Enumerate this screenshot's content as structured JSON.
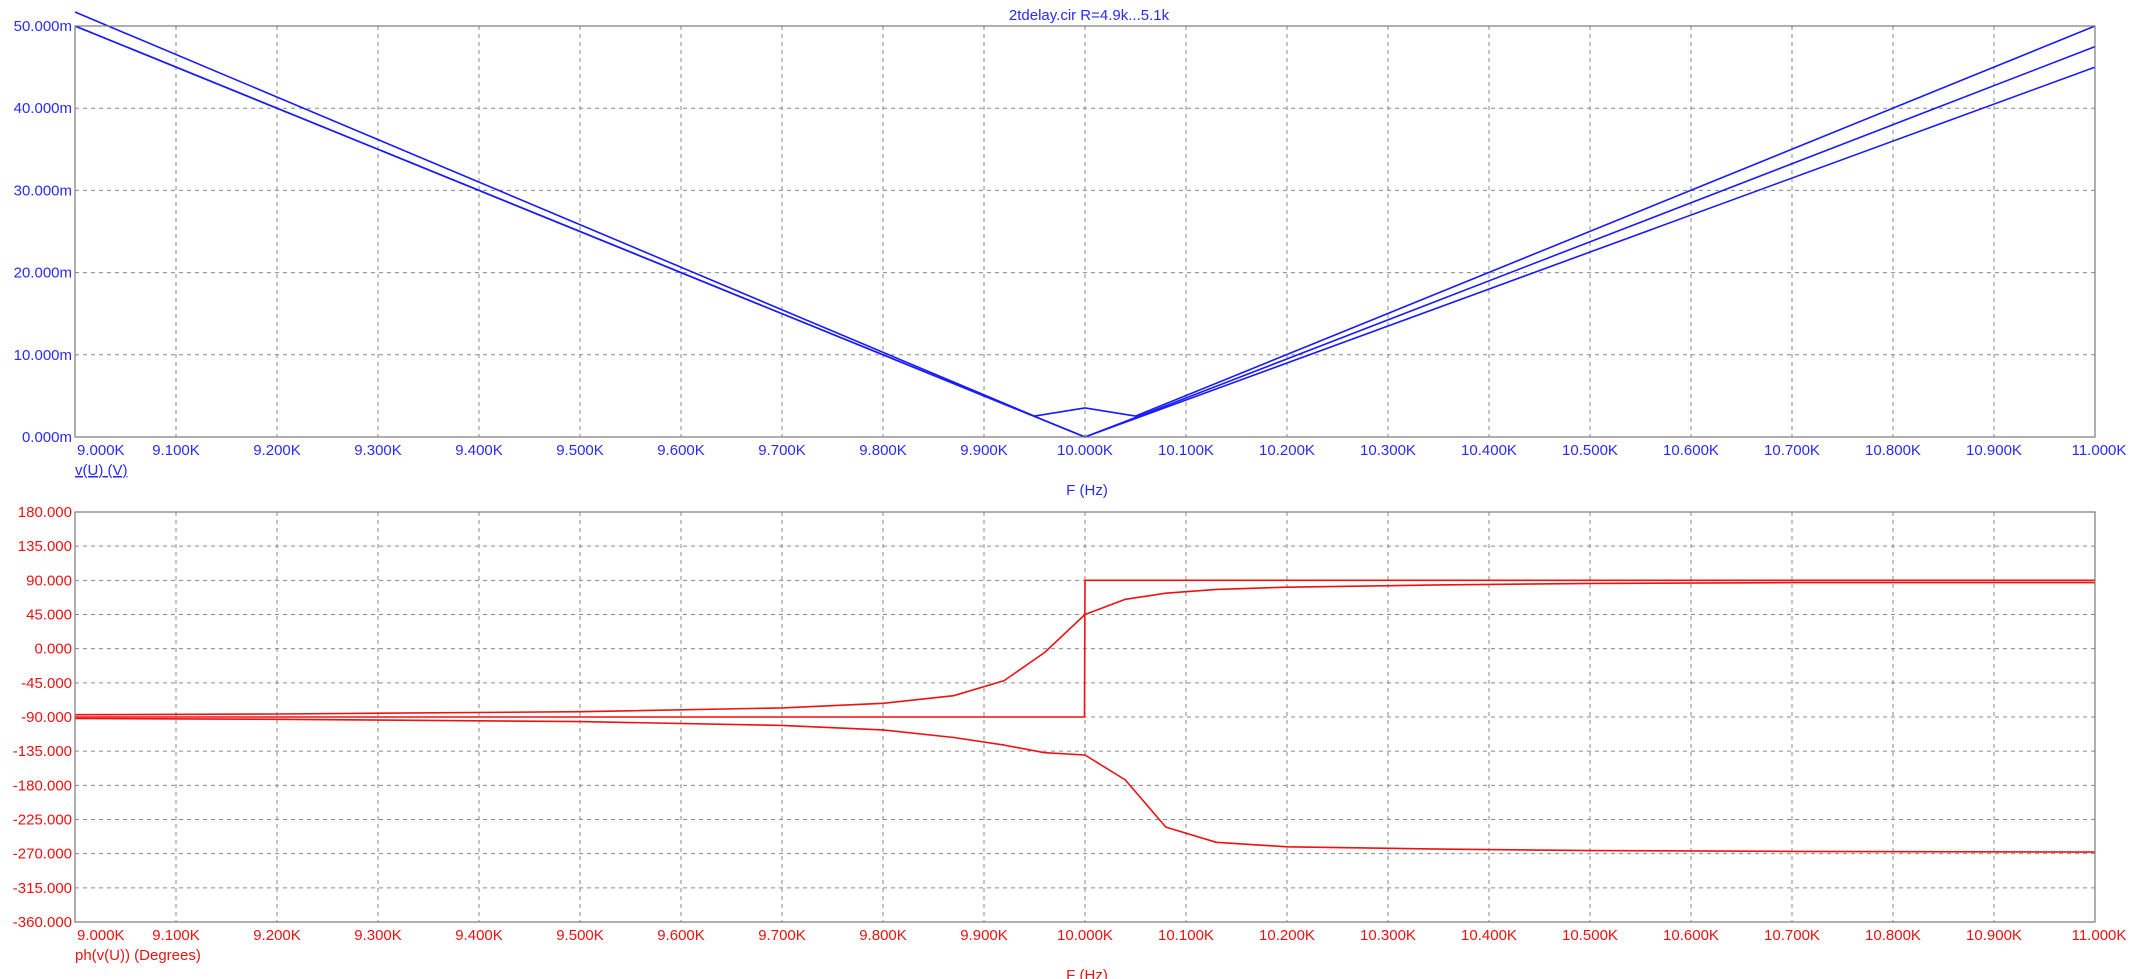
{
  "title": "2tdelay.cir R=4.9k...5.1k",
  "colors": {
    "magnitude": "#1a1aff",
    "phase": "#ee1111",
    "grid": "#8a8a8a",
    "text_blue": "#2a2aff",
    "text_red": "#ee1111"
  },
  "chart_data": [
    {
      "type": "line",
      "title": "2tdelay.cir R=4.9k...5.1k",
      "xlabel": "F (Hz)",
      "ylabel": "v(U) (V)",
      "xlim": [
        9000,
        11000
      ],
      "ylim": [
        0,
        0.05
      ],
      "grid": true,
      "x_tick_labels": [
        "9.000K",
        "9.100K",
        "9.200K",
        "9.300K",
        "9.400K",
        "9.500K",
        "9.600K",
        "9.700K",
        "9.800K",
        "9.900K",
        "10.000K",
        "10.100K",
        "10.200K",
        "10.300K",
        "10.400K",
        "10.500K",
        "10.600K",
        "10.700K",
        "10.800K",
        "10.900K",
        "11.000K"
      ],
      "y_tick_labels": [
        "0.000m",
        "10.000m",
        "20.000m",
        "30.000m",
        "40.000m",
        "50.000m"
      ],
      "series": [
        {
          "x": [
            9000,
            9950,
            10000,
            10050,
            11000
          ],
          "y": [
            0.0517,
            0.00254,
            0.00354,
            0.00254,
            0.05
          ]
        },
        {
          "x": [
            9000,
            10000,
            11000
          ],
          "y": [
            0.05,
            0.0,
            0.0475
          ]
        },
        {
          "x": [
            9000,
            10000,
            11000
          ],
          "y": [
            0.05,
            0.0,
            0.045
          ]
        }
      ]
    },
    {
      "type": "line",
      "xlabel": "F (Hz)",
      "ylabel": "ph(v(U)) (Degrees)",
      "xlim": [
        9000,
        11000
      ],
      "ylim": [
        -360,
        180
      ],
      "grid": true,
      "x_tick_labels": [
        "9.000K",
        "9.100K",
        "9.200K",
        "9.300K",
        "9.400K",
        "9.500K",
        "9.600K",
        "9.700K",
        "9.800K",
        "9.900K",
        "10.000K",
        "10.100K",
        "10.200K",
        "10.300K",
        "10.400K",
        "10.500K",
        "10.600K",
        "10.700K",
        "10.800K",
        "10.900K",
        "11.000K"
      ],
      "y_tick_labels": [
        "180.000",
        "135.000",
        "90.000",
        "45.000",
        "0.000",
        "-45.000",
        "-90.000",
        "-135.000",
        "-180.000",
        "-225.000",
        "-270.000",
        "-315.000",
        "-360.000"
      ],
      "series": [
        {
          "x": [
            9000,
            9999.5,
            10000,
            11000
          ],
          "y": [
            -90,
            -90,
            90,
            90
          ]
        },
        {
          "x": [
            9000,
            9200,
            9500,
            9700,
            9800,
            9870,
            9920,
            9960,
            10000,
            10040,
            10080,
            10130,
            10200,
            10350,
            10500,
            10700,
            11000
          ],
          "y": [
            -87,
            -86,
            -83,
            -78,
            -72,
            -62,
            -42,
            -5,
            45,
            65,
            73,
            78,
            81,
            84,
            86,
            87,
            87
          ]
        },
        {
          "x": [
            9000,
            9200,
            9500,
            9700,
            9800,
            9870,
            9920,
            9960,
            10000,
            10040,
            10080,
            10130,
            10200,
            10350,
            10500,
            10700,
            11000
          ],
          "y": [
            -92,
            -93,
            -96,
            -101,
            -107,
            -117,
            -127,
            -137,
            -140,
            -173,
            -235,
            -255,
            -261,
            -264,
            -266,
            -267,
            -268
          ]
        }
      ]
    }
  ]
}
